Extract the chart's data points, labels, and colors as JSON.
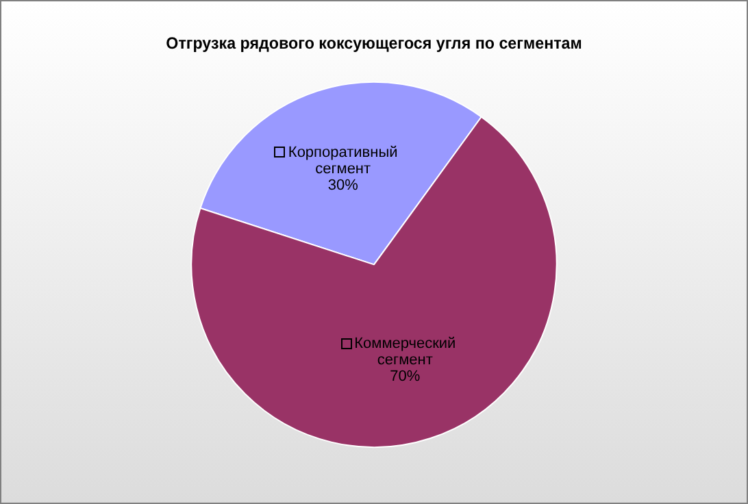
{
  "chart_data": {
    "type": "pie",
    "title": "Отгрузка рядового коксующегося угля по сегментам",
    "categories": [
      "Корпоративный сегмент",
      "Коммерческий сегмент"
    ],
    "values": [
      30,
      70
    ],
    "value_labels": [
      "30%",
      "70%"
    ],
    "colors": [
      "#9999ff",
      "#993366"
    ]
  }
}
